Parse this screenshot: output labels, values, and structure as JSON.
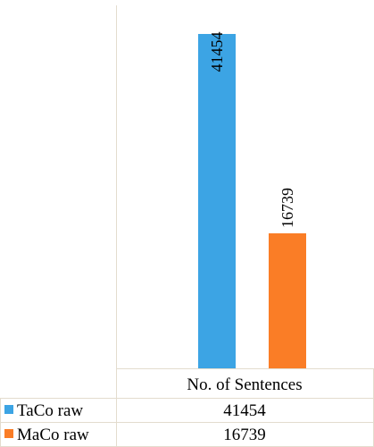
{
  "chart_data": {
    "type": "bar",
    "categories": [
      "No. of Sentences"
    ],
    "series": [
      {
        "name": "TaCo raw",
        "values": [
          41454
        ],
        "color": "#3ca4e4"
      },
      {
        "name": "MaCo raw",
        "values": [
          16739
        ],
        "color": "#fa7d26"
      }
    ],
    "ylim": [
      0,
      45000
    ],
    "grid": false,
    "legend": "data-table-left",
    "data_labels": "rotated-vertical"
  },
  "table": {
    "header": "No. of Sentences",
    "rows": [
      {
        "label": "TaCo raw",
        "value": "41454"
      },
      {
        "label": "MaCo raw",
        "value": "16739"
      }
    ]
  },
  "colors": {
    "axis": "#e3dcce",
    "text": "#000000"
  }
}
